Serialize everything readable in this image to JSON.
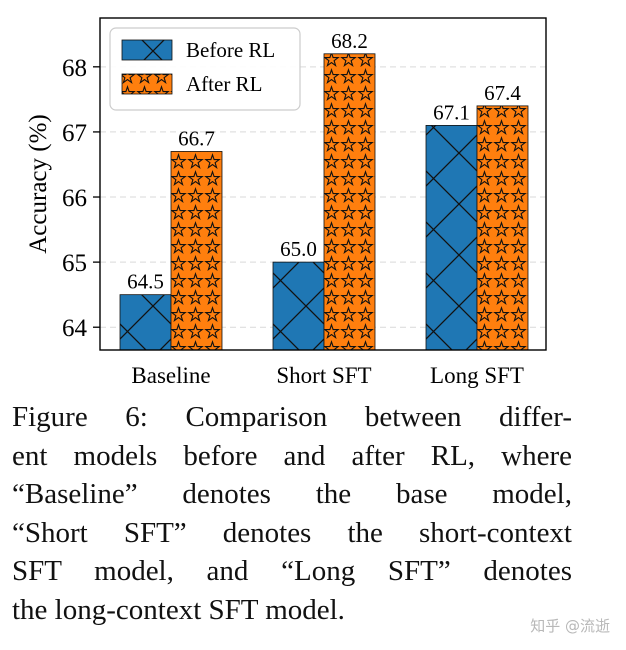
{
  "chart_data": {
    "type": "bar",
    "categories": [
      "Baseline",
      "Short SFT",
      "Long SFT"
    ],
    "series": [
      {
        "name": "Before RL",
        "values": [
          64.5,
          65.0,
          67.1
        ],
        "color": "#1f77b4",
        "hatch": "x"
      },
      {
        "name": "After RL",
        "values": [
          66.7,
          68.2,
          67.4
        ],
        "color": "#ff7f0e",
        "hatch": "star"
      }
    ],
    "data_labels": [
      [
        "64.5",
        "65.0",
        "67.1"
      ],
      [
        "66.7",
        "68.2",
        "67.4"
      ]
    ],
    "title": "",
    "xlabel": "",
    "ylabel": "Accuracy (%)",
    "ylim": [
      63.65,
      68.75
    ],
    "yticks": [
      64,
      65,
      66,
      67,
      68
    ],
    "ytick_labels": [
      "64",
      "65",
      "66",
      "67",
      "68"
    ],
    "grid": "y dashed",
    "legend": "top-left"
  },
  "caption": {
    "lines": [
      "Figure 6:  Comparison between differ-",
      "ent models before and after RL, where",
      "“Baseline” denotes the base model,",
      "“Short SFT” denotes the short-context",
      "SFT model, and “Long SFT” denotes",
      "the long-context SFT model."
    ]
  },
  "watermark": "知乎 @流逝"
}
